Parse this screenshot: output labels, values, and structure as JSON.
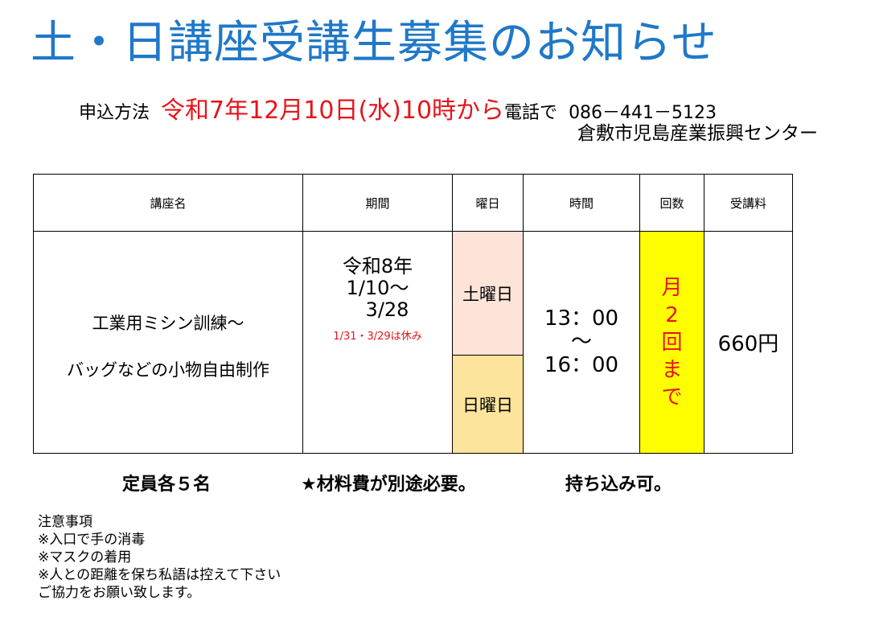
{
  "title": "土・日講座受講生募集のお知らせ",
  "apply": {
    "label": "申込方法",
    "date": "令和7年12月10日(水)10時から",
    "method": "電話で",
    "phone": "086－441－5123",
    "center": "倉敷市児島産業振興センター"
  },
  "table": {
    "headers": [
      "講座名",
      "期間",
      "曜日",
      "時間",
      "回数",
      "受講料"
    ],
    "course_line1": "工業用ミシン訓練～",
    "course_line2": "バッグなどの小物自由制作",
    "period_year": "令和8年",
    "period_start": "1/10～",
    "period_end": "3/28",
    "period_note": "1/31・3/29は休み",
    "day_sat": "土曜日",
    "day_sun": "日曜日",
    "time_start": "13：00",
    "time_sep": "～",
    "time_end": "16：00",
    "count": [
      "月",
      "2",
      "回",
      "ま",
      "で"
    ],
    "fee": "660円"
  },
  "footer": {
    "capacity": "定員各５名",
    "material": "★材料費が別途必要。",
    "bring": "持ち込み可。"
  },
  "notes": [
    "注意事項",
    "※入口で手の消毒",
    "※マスクの着用",
    "※人との距離を保ち私語は控えて下さい",
    "ご協力をお願い致します。"
  ],
  "colors": {
    "title": "#1f78c8",
    "accent_red": "#e8141b",
    "saturday": "#fde3d8",
    "sunday": "#fde49c",
    "count_bg": "#ffff00"
  }
}
